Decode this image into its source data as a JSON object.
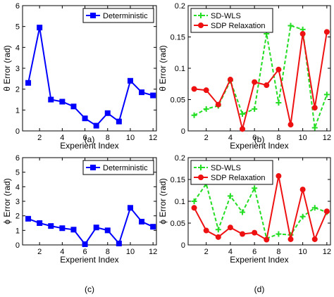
{
  "chart_data": [
    {
      "type": "line",
      "panel_label": "(a)",
      "xlabel": "Experient Index",
      "ylabel": "θ Error (rad)",
      "xlim": [
        0.5,
        12.3
      ],
      "ylim": [
        0,
        6
      ],
      "x_ticks": [
        2,
        4,
        6,
        8,
        10,
        12
      ],
      "y_ticks": [
        0,
        1,
        2,
        3,
        4,
        5,
        6
      ],
      "grid": false,
      "legend_position": "top-right",
      "x": [
        1,
        2,
        3,
        4,
        5,
        6,
        7,
        8,
        9,
        10,
        11,
        12
      ],
      "series": [
        {
          "name": "Deterministic",
          "color": "#0000ff",
          "dash": "solid",
          "marker": "square",
          "values": [
            2.3,
            4.95,
            1.5,
            1.4,
            1.17,
            0.6,
            0.25,
            0.85,
            0.45,
            2.4,
            1.85,
            1.7
          ]
        }
      ]
    },
    {
      "type": "line",
      "panel_label": "(b)",
      "xlabel": "Experient Index",
      "ylabel": "θ Error (rad)",
      "xlim": [
        0.5,
        12.3
      ],
      "ylim": [
        0,
        0.2
      ],
      "x_ticks": [
        2,
        4,
        6,
        8,
        10,
        12
      ],
      "x_tick_labels": [
        "2",
        "4",
        "6",
        "8",
        "10",
        "12"
      ],
      "y_ticks": [
        0,
        0.05,
        0.1,
        0.15,
        0.2
      ],
      "y_tick_labels": [
        "0",
        "0.05",
        "0.1",
        "0.15",
        "0.2"
      ],
      "grid": false,
      "legend_position": "top-left",
      "x": [
        1,
        2,
        3,
        4,
        5,
        6,
        7,
        8,
        9,
        10,
        11,
        12
      ],
      "series": [
        {
          "name": "SD-WLS",
          "color": "#22dd22",
          "dash": "dashed",
          "marker": "plus",
          "values": [
            0.025,
            0.035,
            0.04,
            0.08,
            0.027,
            0.035,
            0.155,
            0.045,
            0.168,
            0.162,
            0.005,
            0.058
          ]
        },
        {
          "name": "SDP Relaxation",
          "color": "#ee1111",
          "dash": "solid",
          "marker": "circle",
          "values": [
            0.067,
            0.065,
            0.042,
            0.082,
            0.003,
            0.078,
            0.073,
            0.098,
            0.01,
            0.155,
            0.037,
            0.158
          ]
        }
      ]
    },
    {
      "type": "line",
      "panel_label": "(c)",
      "xlabel": "Experient Index",
      "ylabel": "ϕ Error (rad)",
      "xlim": [
        0.5,
        12.3
      ],
      "ylim": [
        0,
        6
      ],
      "x_ticks": [
        2,
        4,
        6,
        8,
        10,
        12
      ],
      "y_ticks": [
        0,
        1,
        2,
        3,
        4,
        5,
        6
      ],
      "grid": false,
      "legend_position": "top-right",
      "x": [
        1,
        2,
        3,
        4,
        5,
        6,
        7,
        8,
        9,
        10,
        11,
        12
      ],
      "series": [
        {
          "name": "Deterministic",
          "color": "#0000ff",
          "dash": "solid",
          "marker": "square",
          "values": [
            1.8,
            1.5,
            1.3,
            1.15,
            1.05,
            0.05,
            1.2,
            1.0,
            0.1,
            2.55,
            1.6,
            1.25
          ]
        }
      ]
    },
    {
      "type": "line",
      "panel_label": "(d)",
      "xlabel": "Experient Index",
      "ylabel": "ϕ Error (rad)",
      "xlim": [
        0.5,
        12.3
      ],
      "ylim": [
        0,
        0.2
      ],
      "x_ticks": [
        2,
        4,
        6,
        8,
        10,
        12
      ],
      "x_tick_labels": [
        "2",
        "4",
        "6",
        "8",
        "10",
        "12"
      ],
      "y_ticks": [
        0,
        0.05,
        0.1,
        0.15,
        0.2
      ],
      "y_tick_labels": [
        "0",
        "0.05",
        "0.1",
        "0.15",
        "0.2"
      ],
      "grid": false,
      "legend_position": "top-left",
      "x": [
        1,
        2,
        3,
        4,
        5,
        6,
        7,
        8,
        9,
        10,
        11,
        12
      ],
      "series": [
        {
          "name": "SD-WLS",
          "color": "#22dd22",
          "dash": "dashed",
          "marker": "plus",
          "values": [
            0.1,
            0.14,
            0.035,
            0.112,
            0.075,
            0.13,
            0.015,
            0.025,
            0.023,
            0.065,
            0.085,
            0.075
          ]
        },
        {
          "name": "SDP Relaxation",
          "color": "#ee1111",
          "dash": "solid",
          "marker": "circle",
          "values": [
            0.085,
            0.033,
            0.018,
            0.04,
            0.025,
            0.028,
            0.012,
            0.158,
            0.013,
            0.127,
            0.013,
            0.077
          ]
        }
      ]
    }
  ]
}
